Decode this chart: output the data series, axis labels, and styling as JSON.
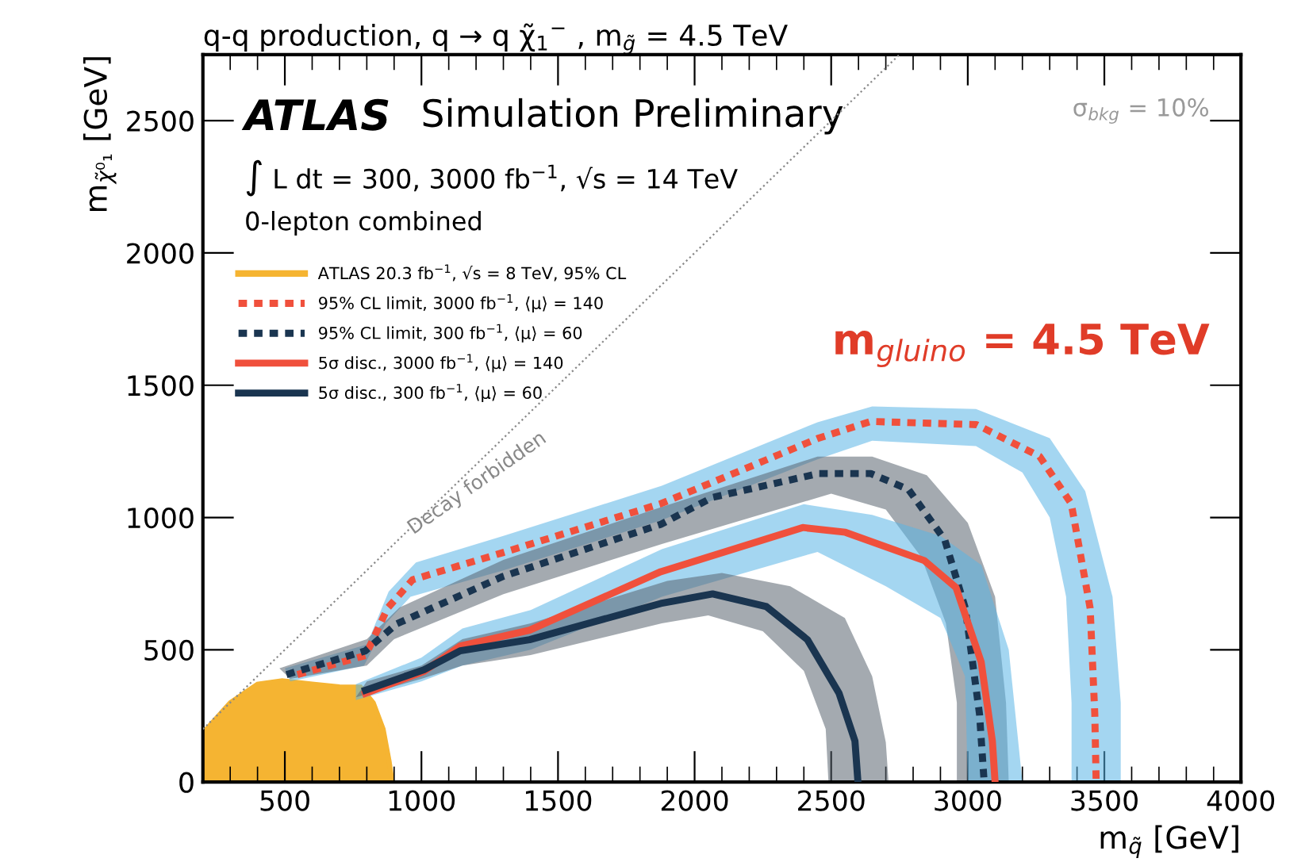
{
  "chart_data": {
    "type": "line",
    "title": "q-q production, q → q χ̃$_{1}$$^{−}$ , m$_{g̃}$ = 4.5 TeV",
    "xlabel": "m$_{q̃}$ [GeV]",
    "ylabel": "m$_{χ̃⁰₁}$ [GeV]",
    "xlim": [
      200,
      4000
    ],
    "ylim": [
      0,
      2750
    ],
    "xticks": [
      500,
      1000,
      1500,
      2000,
      2500,
      3000,
      3500,
      4000
    ],
    "yticks": [
      0,
      500,
      1000,
      1500,
      2000,
      2500
    ],
    "grid": false,
    "legend": "top left",
    "series": [
      {
        "color": "#888888",
        "line_style": "dotted",
        "x": [
          200,
          2750
        ],
        "values": [
          200,
          2750
        ]
      },
      {
        "type": "area",
        "color": "#5ab4e6",
        "x": [
          500,
          800,
          880,
          980,
          1300,
          1880,
          2450,
          2650,
          3030,
          3300,
          3430,
          3530,
          3560,
          3560,
          3380,
          3380,
          3360,
          3300,
          3200,
          3030,
          2650,
          2450,
          1880,
          1300,
          960,
          870,
          790,
          520
        ],
        "values": [
          430,
          520,
          720,
          830,
          930,
          1120,
          1360,
          1420,
          1410,
          1300,
          1100,
          700,
          300,
          0,
          0,
          300,
          700,
          1000,
          1170,
          1270,
          1290,
          1220,
          990,
          800,
          700,
          600,
          440,
          380
        ]
      },
      {
        "type": "area",
        "color": "#5a6470",
        "x": [
          480,
          800,
          920,
          1300,
          1880,
          2450,
          2650,
          2850,
          3000,
          3100,
          3140,
          3150,
          2960,
          2960,
          2920,
          2830,
          2700,
          2500,
          1880,
          1300,
          900,
          800,
          520
        ],
        "values": [
          430,
          540,
          660,
          840,
          1040,
          1230,
          1230,
          1160,
          980,
          700,
          300,
          0,
          0,
          300,
          600,
          850,
          1030,
          1090,
          900,
          710,
          540,
          440,
          390
        ]
      },
      {
        "type": "area",
        "color": "#5ab4e6",
        "x": [
          760,
          1000,
          1150,
          1400,
          1880,
          2400,
          2650,
          2900,
          3050,
          3150,
          3200,
          3000,
          2990,
          2900,
          2700,
          2450,
          1880,
          1400,
          1150,
          1000,
          760
        ],
        "values": [
          370,
          470,
          580,
          650,
          880,
          1050,
          1010,
          930,
          820,
          500,
          0,
          0,
          400,
          620,
          740,
          870,
          700,
          500,
          440,
          380,
          310
        ]
      },
      {
        "type": "area",
        "color": "#5a6470",
        "x": [
          800,
          1000,
          1150,
          1400,
          1900,
          2100,
          2350,
          2550,
          2650,
          2700,
          2710,
          2490,
          2480,
          2400,
          2250,
          2050,
          1880,
          1400,
          1150,
          1000,
          760
        ],
        "values": [
          380,
          440,
          540,
          600,
          760,
          790,
          740,
          620,
          400,
          150,
          0,
          0,
          200,
          420,
          570,
          630,
          600,
          480,
          440,
          390,
          320
        ]
      },
      {
        "type": "area",
        "name": "ATLAS 20.3 fb$^{−1}$, √s = 8 TeV, 95% CL",
        "color": "#f5b432",
        "x": [
          200,
          200,
          300,
          400,
          490,
          600,
          700,
          777,
          824,
          860,
          882,
          893
        ],
        "values": [
          0,
          185,
          300,
          370,
          383,
          370,
          360,
          359,
          299,
          200,
          78,
          0
        ]
      },
      {
        "name": "95% CL limit, 3000 fb$^{−1}$, ⟨μ⟩ = 140",
        "color": "#f0503c",
        "line_style": "dotted",
        "x": [
          546,
          795,
          876,
          968,
          1298,
          1876,
          2454,
          2645,
          3032,
          3263,
          3379,
          3448,
          3465,
          3470
        ],
        "values": [
          406,
          478,
          657,
          765,
          867,
          1052,
          1300,
          1363,
          1351,
          1231,
          1052,
          657,
          257,
          0
        ]
      },
      {
        "name": "95% CL limit, 300 fb$^{−1}$, ⟨μ⟩ = 60",
        "color": "#1a3550",
        "line_style": "dotted",
        "x": [
          506,
          795,
          910,
          1298,
          1876,
          2066,
          2454,
          2645,
          2783,
          2916,
          2991,
          3043,
          3060
        ],
        "values": [
          406,
          496,
          598,
          777,
          974,
          1076,
          1166,
          1166,
          1106,
          915,
          657,
          257,
          0
        ]
      },
      {
        "name": "5σ disc., 3000 fb$^{−1}$, ⟨μ⟩ = 140",
        "color": "#f0503c",
        "line_style": "solid",
        "x": [
          795,
          1009,
          1142,
          1396,
          1876,
          2396,
          2552,
          2841,
          2957,
          3049,
          3090,
          3100
        ],
        "values": [
          335,
          418,
          514,
          574,
          795,
          962,
          944,
          837,
          735,
          454,
          155,
          0
        ]
      },
      {
        "name": "5σ disc., 300 fb$^{−1}$, ⟨μ⟩ = 60",
        "color": "#1a3550",
        "line_style": "solid",
        "x": [
          795,
          1009,
          1142,
          1396,
          1876,
          2066,
          2263,
          2413,
          2529,
          2587,
          2598
        ],
        "values": [
          347,
          424,
          496,
          538,
          675,
          711,
          663,
          538,
          335,
          155,
          0
        ]
      }
    ],
    "annotations": [
      "ATLAS",
      "Simulation Preliminary",
      "∫ L dt = 300, 3000 fb$^{−1}$, √s = 14 TeV",
      "0-lepton combined",
      "σ$_{bkg}$ = 10%",
      "m$_{gluino}$ = 4.5 TeV",
      "Decay forbidden"
    ]
  }
}
